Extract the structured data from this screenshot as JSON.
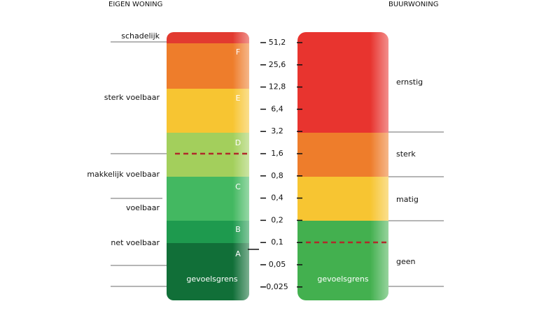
{
  "headers": {
    "left": "EIGEN WONING",
    "right": "BUURWONING"
  },
  "scale": [
    "51,2",
    "25,6",
    "12,8",
    "6,4",
    "3,2",
    "1,6",
    "0,8",
    "0,4",
    "0,2",
    "0,1",
    "0,05",
    "0,025"
  ],
  "left_classes": [
    "F",
    "E",
    "D",
    "C",
    "B",
    "A"
  ],
  "left_labels": [
    "schadelijk",
    "sterk voelbaar",
    "makkelijk voelbaar",
    "voelbaar",
    "net voelbaar"
  ],
  "right_labels": [
    "ernstig",
    "sterk",
    "matig",
    "geen"
  ],
  "threshold_label": "gevoelsgrens"
}
